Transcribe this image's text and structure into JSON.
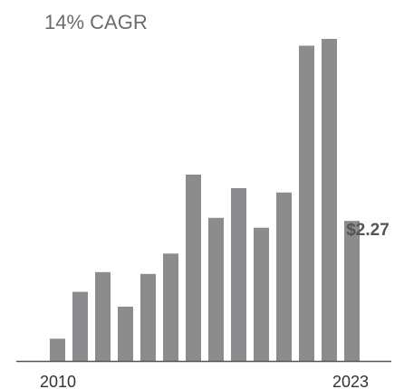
{
  "chart_data": {
    "type": "bar",
    "title": "",
    "annotation": "14% CAGR",
    "categories": [
      "2010",
      "2011",
      "2012",
      "2013",
      "2014",
      "2015",
      "2016",
      "2017",
      "2018",
      "2019",
      "2020",
      "2021",
      "2022",
      "2023"
    ],
    "values": [
      0.36,
      1.12,
      1.44,
      0.88,
      1.41,
      1.74,
      3.02,
      2.32,
      2.8,
      2.16,
      2.73,
      5.11,
      5.22,
      2.27
    ],
    "tick_labels": [
      "2010",
      "2023"
    ],
    "data_labels": [
      {
        "category": "2023",
        "text": "$2.27"
      }
    ],
    "xlabel": "",
    "ylabel": "",
    "ylim": [
      0,
      5.22
    ],
    "grid": false,
    "legend": "none",
    "colors": {
      "bar": "#8c8c8e",
      "axis": "#555555",
      "annotation": "#6b6b6b",
      "tick_text": "#333333",
      "value_label": "#555555"
    }
  }
}
